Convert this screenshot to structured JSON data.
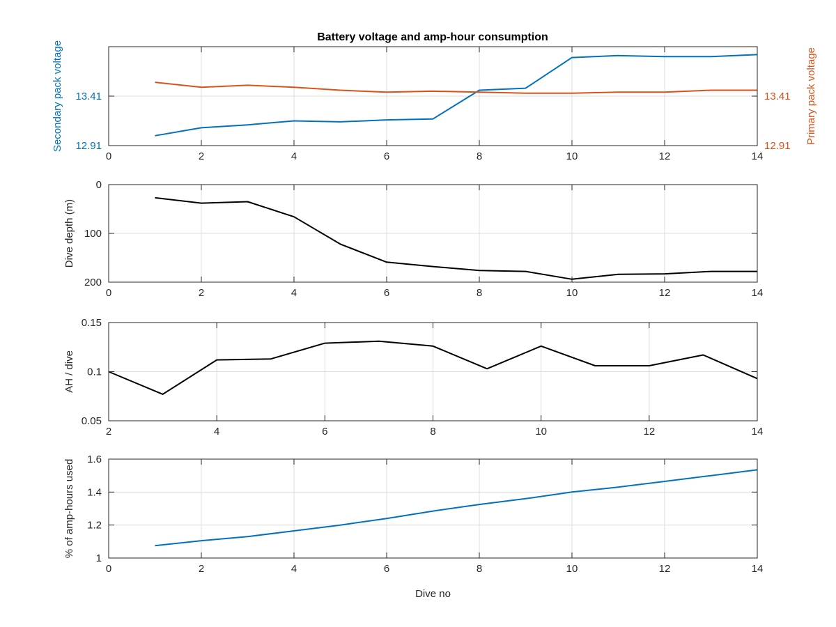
{
  "title": "Battery voltage and amp-hour consumption",
  "colors": {
    "secondary": "#0072BD",
    "primary": "#D95319",
    "black": "#000000"
  },
  "chart_data": [
    {
      "type": "line",
      "ylabel": "Secondary pack voltage",
      "y2label": "Primary pack voltage",
      "xlim": [
        0,
        14
      ],
      "xticks": [
        0,
        2,
        4,
        6,
        8,
        10,
        12,
        14
      ],
      "ylim": [
        12.91,
        13.91
      ],
      "yticks": [
        12.91,
        13.41
      ],
      "y2lim": [
        12.91,
        13.91
      ],
      "y2ticks": [
        12.91,
        13.41
      ],
      "grid": true,
      "series": [
        {
          "axis": "left",
          "color": "secondary",
          "x": [
            1,
            2,
            3,
            4,
            5,
            6,
            7,
            8,
            9,
            10,
            11,
            12,
            13,
            14
          ],
          "y": [
            13.01,
            13.09,
            13.12,
            13.16,
            13.15,
            13.17,
            13.18,
            13.47,
            13.49,
            13.8,
            13.82,
            13.81,
            13.81,
            13.83
          ]
        },
        {
          "axis": "right",
          "color": "primary",
          "x": [
            1,
            2,
            3,
            4,
            5,
            6,
            7,
            8,
            9,
            10,
            11,
            12,
            13,
            14
          ],
          "y": [
            13.55,
            13.5,
            13.52,
            13.5,
            13.47,
            13.45,
            13.46,
            13.45,
            13.44,
            13.44,
            13.45,
            13.45,
            13.47,
            13.47
          ]
        }
      ]
    },
    {
      "type": "line",
      "ylabel": "Dive depth (m)",
      "y_reversed": true,
      "xlim": [
        0,
        14
      ],
      "xticks": [
        0,
        2,
        4,
        6,
        8,
        10,
        12,
        14
      ],
      "ylim": [
        0,
        200
      ],
      "yticks": [
        0,
        100,
        200
      ],
      "grid": true,
      "series": [
        {
          "color": "black",
          "x": [
            1,
            2,
            3,
            4,
            5,
            6,
            7,
            8,
            9,
            10,
            11,
            12,
            13,
            14
          ],
          "y": [
            27,
            38,
            35,
            66,
            122,
            159,
            168,
            176,
            178,
            194,
            184,
            183,
            178,
            178
          ]
        }
      ]
    },
    {
      "type": "line",
      "ylabel": "AH / dive",
      "xlim": [
        2,
        14
      ],
      "xticks": [
        2,
        4,
        6,
        8,
        10,
        12,
        14
      ],
      "ylim": [
        0.05,
        0.15
      ],
      "yticks": [
        0.05,
        0.1,
        0.15
      ],
      "grid": true,
      "series": [
        {
          "color": "black",
          "x": [
            2,
            3,
            4,
            5,
            6,
            7,
            8,
            9,
            10,
            11,
            12,
            13,
            14
          ],
          "y": [
            0.1,
            0.077,
            0.112,
            0.113,
            0.129,
            0.131,
            0.126,
            0.103,
            0.126,
            0.106,
            0.106,
            0.117,
            0.093
          ]
        }
      ]
    },
    {
      "type": "line",
      "ylabel": "% of amp-hours used",
      "xlabel": "Dive no",
      "xlim": [
        0,
        14
      ],
      "xticks": [
        0,
        2,
        4,
        6,
        8,
        10,
        12,
        14
      ],
      "ylim": [
        1,
        1.6
      ],
      "yticks": [
        1,
        1.2,
        1.4,
        1.6
      ],
      "grid": true,
      "series": [
        {
          "color": "secondary",
          "x": [
            1,
            2,
            3,
            4,
            5,
            6,
            7,
            8,
            9,
            10,
            11,
            12,
            13,
            14
          ],
          "y": [
            1.075,
            1.105,
            1.13,
            1.165,
            1.2,
            1.24,
            1.285,
            1.325,
            1.36,
            1.4,
            1.43,
            1.465,
            1.5,
            1.535
          ]
        }
      ]
    }
  ]
}
